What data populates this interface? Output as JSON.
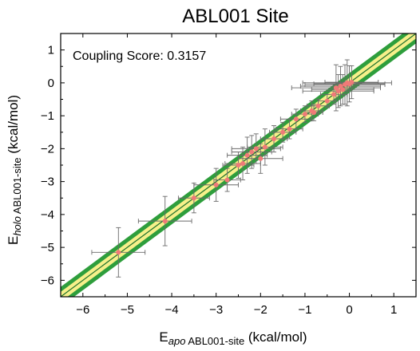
{
  "chart_data": {
    "type": "scatter",
    "title": "ABL001 Site",
    "xlabel": {
      "main": "E",
      "sub_italic": "apo",
      "sub_plain": " ABL001-site",
      "unit": " (kcal/mol)"
    },
    "ylabel": {
      "main": "E",
      "sub_italic": "holo",
      "sub_plain": " ABL001-site",
      "unit": " (kcal/mol)"
    },
    "annotation": "Coupling Score: 0.3157",
    "xlim": [
      -6.5,
      1.5
    ],
    "ylim": [
      -6.5,
      1.5
    ],
    "xticks": [
      -6,
      -5,
      -4,
      -3,
      -2,
      -1,
      0,
      1
    ],
    "yticks": [
      -6,
      -5,
      -4,
      -3,
      -2,
      -1,
      0,
      1
    ],
    "grid": false,
    "reference_line": {
      "slope": 1,
      "intercept": 0,
      "outer_band_halfwidth": 0.3,
      "inner_band_halfwidth": 0.15,
      "outer_color": "#2e9e3c",
      "inner_color": "#f6f08a",
      "line_color": "#1c6f2a"
    },
    "marker_color": "#f07a78",
    "errorbar_color": "#6a6a6a",
    "points": [
      {
        "x": -5.2,
        "y": -5.15,
        "xerr": 0.6,
        "yerr": 0.75
      },
      {
        "x": -4.15,
        "y": -4.2,
        "xerr": 0.6,
        "yerr": 0.75
      },
      {
        "x": -3.5,
        "y": -3.5,
        "xerr": 0.35,
        "yerr": 0.45
      },
      {
        "x": -3.0,
        "y": -3.1,
        "xerr": 0.5,
        "yerr": 0.5
      },
      {
        "x": -2.75,
        "y": -2.95,
        "xerr": 0.3,
        "yerr": 0.35
      },
      {
        "x": -2.5,
        "y": -2.5,
        "xerr": 0.35,
        "yerr": 0.4
      },
      {
        "x": -2.4,
        "y": -2.45,
        "xerr": 0.4,
        "yerr": 0.5
      },
      {
        "x": -2.3,
        "y": -2.2,
        "xerr": 0.45,
        "yerr": 0.55
      },
      {
        "x": -2.2,
        "y": -2.1,
        "xerr": 0.45,
        "yerr": 0.5
      },
      {
        "x": -2.1,
        "y": -2.0,
        "xerr": 0.55,
        "yerr": 0.45
      },
      {
        "x": -2.0,
        "y": -2.3,
        "xerr": 0.5,
        "yerr": 0.45
      },
      {
        "x": -1.9,
        "y": -1.95,
        "xerr": 0.4,
        "yerr": 0.55
      },
      {
        "x": -1.7,
        "y": -1.7,
        "xerr": 0.3,
        "yerr": 0.4
      },
      {
        "x": -1.5,
        "y": -1.5,
        "xerr": 0.3,
        "yerr": 0.3
      },
      {
        "x": -1.35,
        "y": -1.4,
        "xerr": 0.3,
        "yerr": 0.3
      },
      {
        "x": -1.2,
        "y": -1.1,
        "xerr": 0.35,
        "yerr": 0.3
      },
      {
        "x": -1.0,
        "y": -0.95,
        "xerr": 0.3,
        "yerr": 0.25
      },
      {
        "x": -0.85,
        "y": -0.85,
        "xerr": 0.25,
        "yerr": 0.3
      },
      {
        "x": -0.8,
        "y": -0.9,
        "xerr": 0.2,
        "yerr": 0.25
      },
      {
        "x": -0.7,
        "y": -0.7,
        "xerr": 0.25,
        "yerr": 0.2
      },
      {
        "x": -0.5,
        "y": -0.55,
        "xerr": 0.2,
        "yerr": 0.2
      },
      {
        "x": -0.35,
        "y": -0.35,
        "xerr": 0.3,
        "yerr": 0.3
      },
      {
        "x": -0.3,
        "y": -0.15,
        "xerr": 1.0,
        "yerr": 0.7
      },
      {
        "x": -0.25,
        "y": -0.25,
        "xerr": 0.8,
        "yerr": 0.5
      },
      {
        "x": -0.2,
        "y": -0.1,
        "xerr": 0.9,
        "yerr": 0.6
      },
      {
        "x": -0.15,
        "y": -0.2,
        "xerr": 0.7,
        "yerr": 0.45
      },
      {
        "x": -0.1,
        "y": -0.05,
        "xerr": 0.9,
        "yerr": 0.6
      },
      {
        "x": -0.05,
        "y": 0.0,
        "xerr": 1.0,
        "yerr": 0.7
      },
      {
        "x": 0.0,
        "y": -0.03,
        "xerr": 0.8,
        "yerr": 0.55
      },
      {
        "x": 0.05,
        "y": 0.02,
        "xerr": 0.6,
        "yerr": 0.5
      }
    ]
  }
}
